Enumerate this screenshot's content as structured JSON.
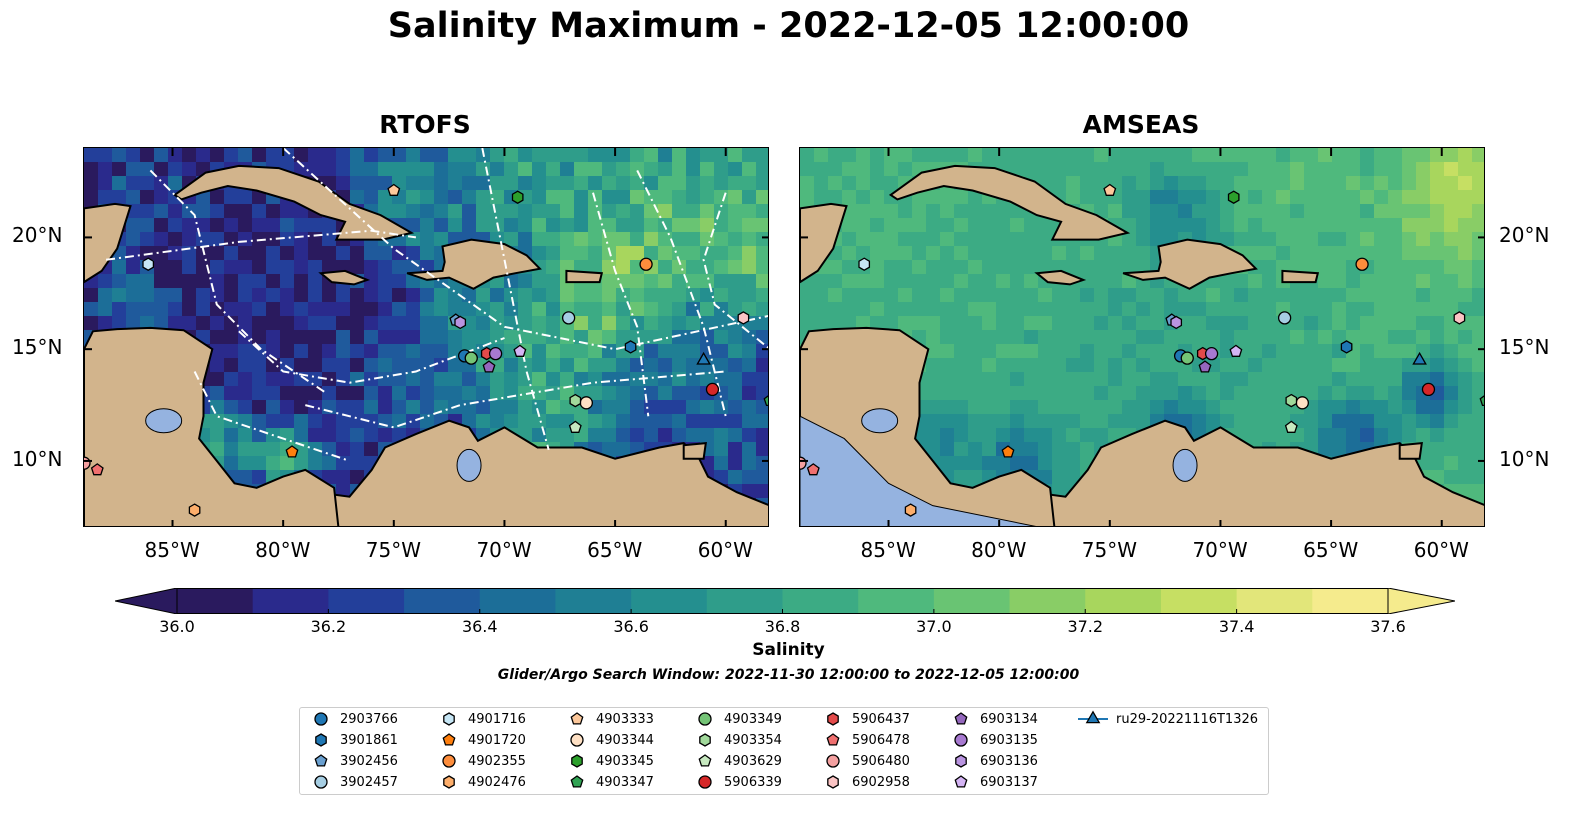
{
  "title": "Salinity Maximum - 2022-12-05 12:00:00",
  "panels": [
    {
      "title": "RTOFS",
      "land_color": "#d2b48c"
    },
    {
      "title": "AMSEAS",
      "land_color": "#d2b48c"
    }
  ],
  "axes": {
    "lon_ticks": [
      "85°W",
      "80°W",
      "75°W",
      "70°W",
      "65°W",
      "60°W"
    ],
    "lat_ticks": [
      "20°N",
      "15°N",
      "10°N"
    ],
    "lon_range": [
      -89,
      -58
    ],
    "lat_range": [
      7,
      24
    ]
  },
  "colorbar": {
    "label": "Salinity",
    "ticks": [
      "36.0",
      "36.2",
      "36.4",
      "36.6",
      "36.8",
      "37.0",
      "37.2",
      "37.4",
      "37.6"
    ],
    "range": [
      36.0,
      37.6
    ],
    "colors": [
      "#2a1a5e",
      "#2a2a8c",
      "#233f9a",
      "#1f5a9c",
      "#1c6e98",
      "#1f7f94",
      "#248f8f",
      "#2f9d8a",
      "#3cab84",
      "#4fb97d",
      "#69c473",
      "#89cd66",
      "#a8d65d",
      "#c6df63",
      "#e2e67a",
      "#f5eb8d"
    ]
  },
  "subtitle": "Glider/Argo Search Window: 2022-11-30 12:00:00 to 2022-12-05 12:00:00",
  "chart_data": {
    "type": "scatter",
    "series": [
      {
        "name": "2903766",
        "marker": "circle",
        "color": "#1f77b4",
        "points": [
          [
            -71.8,
            14.7
          ]
        ]
      },
      {
        "name": "3901861",
        "marker": "hexagon",
        "color": "#1f77b4",
        "points": [
          [
            -64.3,
            15.1
          ]
        ]
      },
      {
        "name": "3902456",
        "marker": "pentagon",
        "color": "#6aa0d0",
        "points": [
          [
            -72.2,
            16.3
          ]
        ]
      },
      {
        "name": "3902457",
        "marker": "circle",
        "color": "#a6cee3",
        "points": [
          [
            -67.1,
            16.4
          ]
        ]
      },
      {
        "name": "4901716",
        "marker": "hexagon",
        "color": "#c6e6f5",
        "points": [
          [
            -86.1,
            18.8
          ]
        ]
      },
      {
        "name": "4901720",
        "marker": "pentagon",
        "color": "#ff7f0e",
        "points": [
          [
            -79.6,
            10.4
          ]
        ]
      },
      {
        "name": "4902355",
        "marker": "circle",
        "color": "#fd8d3c",
        "points": [
          [
            -63.6,
            18.8
          ]
        ]
      },
      {
        "name": "4902476",
        "marker": "hexagon",
        "color": "#fdae6b",
        "points": [
          [
            -84.0,
            7.8
          ]
        ]
      },
      {
        "name": "4903333",
        "marker": "pentagon",
        "color": "#fdc89b",
        "points": [
          [
            -75.0,
            22.1
          ]
        ]
      },
      {
        "name": "4903344",
        "marker": "circle",
        "color": "#fee0c4",
        "points": [
          [
            -66.3,
            12.6
          ]
        ]
      },
      {
        "name": "4903345",
        "marker": "hexagon",
        "color": "#2ca02c",
        "points": [
          [
            -69.4,
            21.8
          ]
        ]
      },
      {
        "name": "4903347",
        "marker": "pentagon",
        "color": "#31a354",
        "points": [
          [
            -58.0,
            12.7
          ]
        ]
      },
      {
        "name": "4903349",
        "marker": "circle",
        "color": "#74c476",
        "points": [
          [
            -71.5,
            14.6
          ]
        ]
      },
      {
        "name": "4903354",
        "marker": "hexagon",
        "color": "#a1d99b",
        "points": [
          [
            -66.8,
            12.7
          ]
        ]
      },
      {
        "name": "4903629",
        "marker": "pentagon",
        "color": "#c7e9c0",
        "points": [
          [
            -66.8,
            11.5
          ]
        ]
      },
      {
        "name": "5906339",
        "marker": "circle",
        "color": "#d62728",
        "points": [
          [
            -60.6,
            13.2
          ]
        ]
      },
      {
        "name": "5906437",
        "marker": "hexagon",
        "color": "#e34a4a",
        "points": [
          [
            -70.8,
            14.8
          ]
        ]
      },
      {
        "name": "5906478",
        "marker": "pentagon",
        "color": "#f07070",
        "points": [
          [
            -88.4,
            9.6
          ]
        ]
      },
      {
        "name": "5906480",
        "marker": "circle",
        "color": "#f4a0a0",
        "points": [
          [
            -89.0,
            9.9
          ]
        ]
      },
      {
        "name": "6902958",
        "marker": "hexagon",
        "color": "#fbc4c4",
        "points": [
          [
            -59.2,
            16.4
          ]
        ]
      },
      {
        "name": "6903134",
        "marker": "pentagon",
        "color": "#9467bd",
        "points": [
          [
            -70.7,
            14.2
          ]
        ]
      },
      {
        "name": "6903135",
        "marker": "circle",
        "color": "#a779d0",
        "points": [
          [
            -70.4,
            14.8
          ]
        ]
      },
      {
        "name": "6903136",
        "marker": "hexagon",
        "color": "#b994e0",
        "points": [
          [
            -72.0,
            16.2
          ]
        ]
      },
      {
        "name": "6903137",
        "marker": "pentagon",
        "color": "#d4b4f4",
        "points": [
          [
            -69.3,
            14.9
          ]
        ]
      },
      {
        "name": "ru29-20221116T1326",
        "marker": "triangle",
        "color": "#1f77b4",
        "line": true,
        "points": [
          [
            -61.0,
            14.5
          ]
        ]
      }
    ]
  }
}
